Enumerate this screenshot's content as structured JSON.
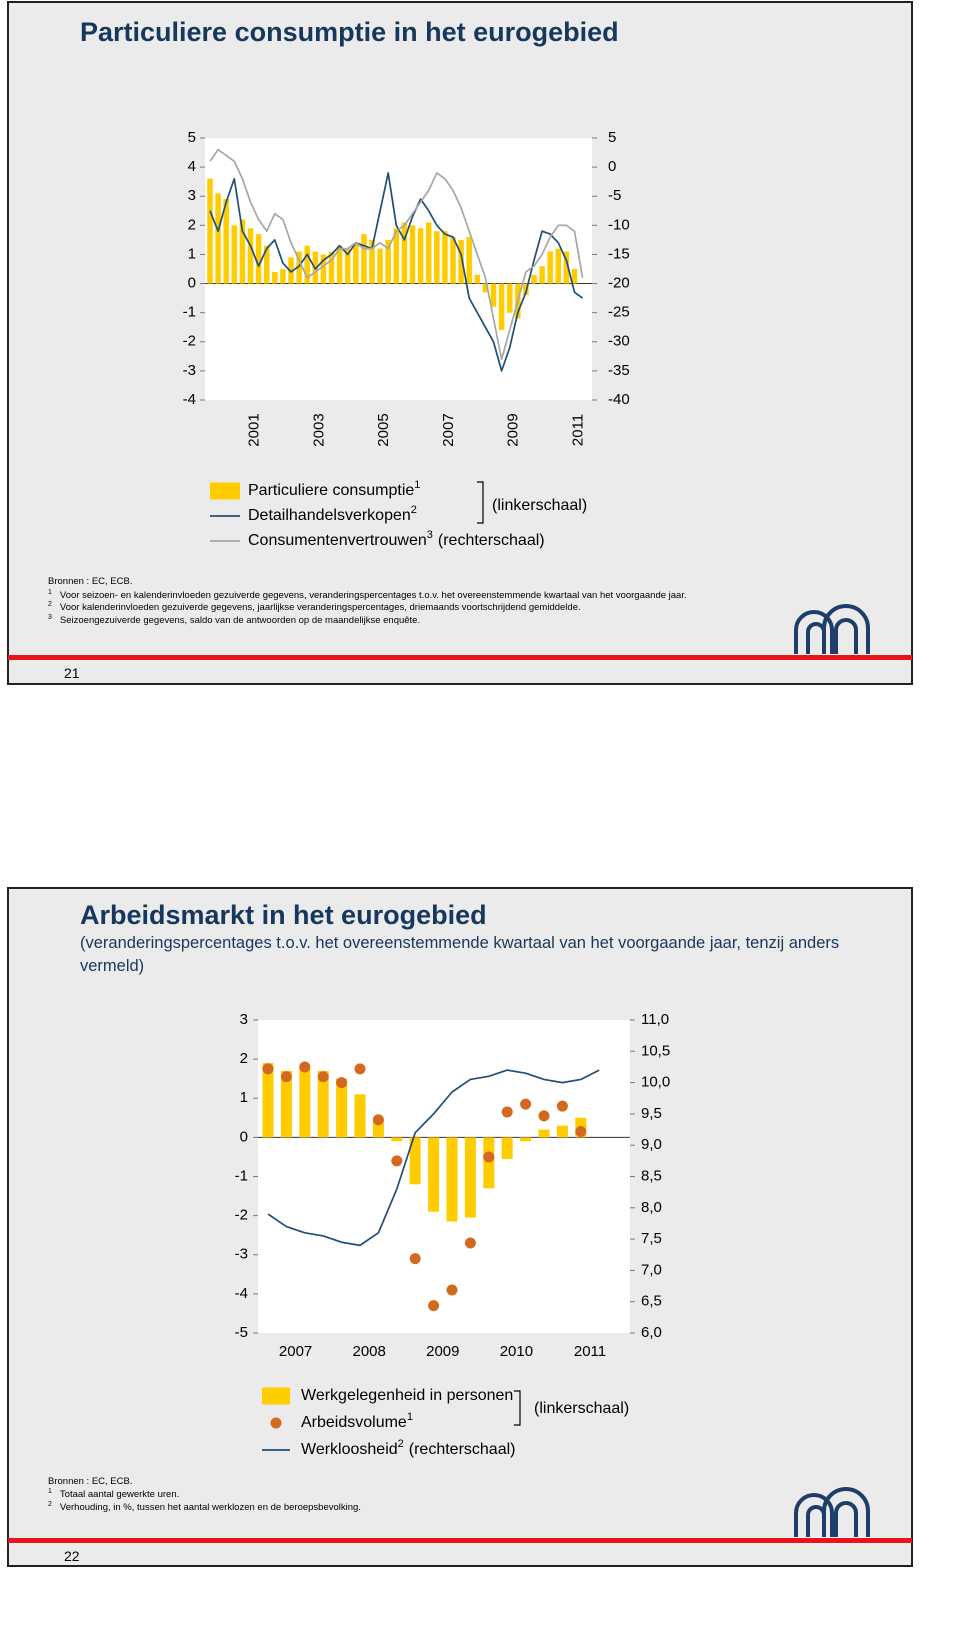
{
  "chart_data": [
    {
      "type": "combo",
      "title": "Particuliere consumptie in het eurogebied",
      "categories": [
        null,
        null,
        null,
        null,
        null,
        "2001",
        null,
        null,
        null,
        null,
        null,
        null,
        null,
        "2003",
        null,
        null,
        null,
        null,
        null,
        null,
        null,
        "2005",
        null,
        null,
        null,
        null,
        null,
        null,
        null,
        "2007",
        null,
        null,
        null,
        null,
        null,
        null,
        null,
        "2009",
        null,
        null,
        null,
        null,
        null,
        null,
        null,
        "2011",
        null
      ],
      "ylim": [
        -4,
        5
      ],
      "yticks": [
        -4,
        -3,
        -2,
        -1,
        0,
        1,
        2,
        3,
        4,
        5
      ],
      "y2lim": [
        -40,
        5
      ],
      "y2ticks": [
        -40,
        -35,
        -30,
        -25,
        -20,
        -15,
        -10,
        -5,
        0,
        5
      ],
      "left_scale_label": "(linkerschaal)",
      "series": [
        {
          "name": "Particuliere consumptie",
          "footnote": "1",
          "type": "bar",
          "color": "#ffcc00",
          "values": [
            3.6,
            3.1,
            2.9,
            2.0,
            2.2,
            1.9,
            1.7,
            1.3,
            0.4,
            0.5,
            0.9,
            1.1,
            1.3,
            1.1,
            1.0,
            1.1,
            1.3,
            1.2,
            1.4,
            1.7,
            1.5,
            1.2,
            1.5,
            1.9,
            2.1,
            2.0,
            1.9,
            2.1,
            1.8,
            1.8,
            1.6,
            1.5,
            1.6,
            0.3,
            -0.3,
            -0.8,
            -1.6,
            -1.0,
            -1.2,
            -0.4,
            0.3,
            0.6,
            1.1,
            1.2,
            1.1,
            0.5,
            null
          ]
        },
        {
          "name": "Detailhandelsverkopen",
          "footnote": "2",
          "type": "line",
          "color": "#1f4e79",
          "values": [
            2.5,
            1.8,
            2.8,
            3.6,
            1.8,
            1.3,
            0.6,
            1.2,
            1.5,
            0.7,
            0.4,
            0.6,
            1.0,
            0.5,
            0.8,
            1.0,
            1.3,
            1.0,
            1.4,
            1.3,
            1.2,
            2.5,
            3.8,
            2.0,
            1.5,
            2.3,
            2.9,
            2.5,
            2.0,
            1.7,
            1.6,
            1.0,
            -0.5,
            -1.0,
            -1.5,
            -2.0,
            -3.0,
            -2.2,
            -1.0,
            -0.3,
            0.8,
            1.8,
            1.7,
            1.4,
            0.8,
            -0.3,
            -0.5
          ]
        },
        {
          "name": "Consumentenvertrouwen",
          "footnote": "3",
          "scale_label": "(rechterschaal)",
          "type": "line",
          "axis": "y2",
          "color": "#a6a6a6",
          "values": [
            1,
            3,
            2,
            1,
            -2,
            -6,
            -9,
            -11,
            -8,
            -9,
            -13,
            -16,
            -19,
            -18,
            -17,
            -16,
            -14,
            -14,
            -13,
            -14,
            -14,
            -13,
            -14,
            -11,
            -10,
            -8,
            -6,
            -4,
            -1,
            -2,
            -4,
            -7,
            -11,
            -15,
            -19,
            -26,
            -33,
            -28,
            -23,
            -18,
            -17,
            -15,
            -12,
            -10,
            -10,
            -11,
            -19
          ]
        }
      ]
    },
    {
      "type": "combo",
      "title": "Arbeidsmarkt in het eurogebied",
      "subtitle": "(veranderingspercentages t.o.v. het overeenstemmende kwartaal van het voorgaande jaar, tenzij anders vermeld)",
      "categories": [
        null,
        "2007",
        null,
        null,
        null,
        "2008",
        null,
        null,
        null,
        "2009",
        null,
        null,
        null,
        "2010",
        null,
        null,
        null,
        "2011",
        null
      ],
      "ylim": [
        -5,
        3
      ],
      "yticks": [
        -5,
        -4,
        -3,
        -2,
        -1,
        0,
        1,
        2,
        3
      ],
      "y2lim": [
        6,
        11
      ],
      "y2ticks": [
        {
          "value": 6,
          "label": "6,0"
        },
        {
          "value": 6.5,
          "label": "6,5"
        },
        {
          "value": 7,
          "label": "7,0"
        },
        {
          "value": 7.5,
          "label": "7,5"
        },
        {
          "value": 8,
          "label": "8,0"
        },
        {
          "value": 8.5,
          "label": "8,5"
        },
        {
          "value": 9,
          "label": "9,0"
        },
        {
          "value": 9.5,
          "label": "9,5"
        },
        {
          "value": 10,
          "label": "10,0"
        },
        {
          "value": 10.5,
          "label": "10,5"
        },
        {
          "value": 11,
          "label": "11,0"
        }
      ],
      "left_scale_label": "(linkerschaal)",
      "series": [
        {
          "name": "Werkgelegenheid in personen",
          "type": "bar",
          "color": "#ffcc00",
          "values": [
            1.9,
            1.7,
            1.75,
            1.7,
            1.5,
            1.1,
            0.4,
            -0.1,
            -1.2,
            -1.9,
            -2.15,
            -2.05,
            -1.3,
            -0.55,
            -0.1,
            0.2,
            0.3,
            0.5,
            null
          ]
        },
        {
          "name": "Arbeidsvolume",
          "footnote": "1",
          "type": "scatter",
          "color": "#d2691e",
          "values": [
            1.75,
            1.55,
            1.8,
            1.55,
            1.4,
            1.75,
            0.45,
            -0.6,
            -3.1,
            -4.3,
            -3.9,
            -2.7,
            -0.5,
            0.65,
            0.85,
            0.55,
            0.8,
            0.15,
            null
          ]
        },
        {
          "name": "Werkloosheid",
          "footnote": "2",
          "scale_label": "(rechterschaal)",
          "type": "line",
          "axis": "y2",
          "color": "#1f4e79",
          "values": [
            7.9,
            7.7,
            7.6,
            7.55,
            7.45,
            7.4,
            7.6,
            8.3,
            9.2,
            9.5,
            9.85,
            10.05,
            10.1,
            10.2,
            10.15,
            10.05,
            10.0,
            10.05,
            10.2
          ]
        }
      ]
    }
  ],
  "slides": [
    {
      "sources": "Bronnen : EC, ECB.",
      "page_number": "21",
      "notes": [
        {
          "marker": "1",
          "text": "Voor seizoen- en kalenderinvloeden gezuiverde gegevens, veranderingspercentages t.o.v. het overeenstemmende kwartaal van het voorgaande jaar."
        },
        {
          "marker": "2",
          "text": "Voor kalenderinvloeden gezuiverde gegevens, jaarlijkse veranderingspercentages, driemaands voortschrijdend gemiddelde."
        },
        {
          "marker": "3",
          "text": "Seizoengezuiverde gegevens, saldo van de antwoorden op de maandelijkse enquête."
        }
      ]
    },
    {
      "sources": "Bronnen : EC, ECB.",
      "page_number": "22",
      "notes": [
        {
          "marker": "1",
          "text": "Totaal aantal gewerkte uren."
        },
        {
          "marker": "2",
          "text": "Verhouding, in %, tussen het aantal werklozen en de beroepsbevolking."
        }
      ]
    }
  ]
}
